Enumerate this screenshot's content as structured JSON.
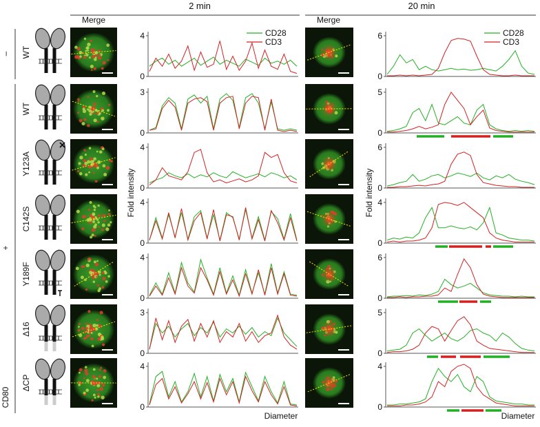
{
  "header": {
    "early": "2 min",
    "late": "20 min",
    "merge_early": "Merge",
    "merge_late": "Merge"
  },
  "groups": {
    "minus": "–",
    "plus": "+",
    "cd80": "CD80"
  },
  "axis": {
    "y_early": "Fold intensity",
    "y_late": "Fold intensity",
    "x_early": "Diameter",
    "x_late": "Diameter"
  },
  "rows": [
    {
      "label": "WT"
    },
    {
      "label": "WT"
    },
    {
      "label": "Y123A"
    },
    {
      "label": "C142S"
    },
    {
      "label": "Y189F"
    },
    {
      "label": "Δ16"
    },
    {
      "label": "ΔCP"
    }
  ],
  "chart_data": [
    {
      "type": "line",
      "ylim": [
        0,
        4.4
      ],
      "yticks": [
        0,
        4
      ],
      "series": [
        {
          "name": "CD28",
          "color": "#22b022",
          "values": [
            1,
            1.5,
            1.8,
            1.2,
            1.6,
            1,
            1.4,
            1.8,
            1.1,
            1.5,
            1.9,
            1.2,
            1.6,
            1.3,
            1,
            1.7,
            1.4,
            1.1,
            1.8,
            1.3,
            1.5,
            1.2,
            1.6,
            1
          ]
        },
        {
          "name": "CD3",
          "color": "#d42020",
          "values": [
            0.5,
            1.8,
            1,
            2.2,
            0.8,
            1.5,
            3,
            0.6,
            2.4,
            0.9,
            1.2,
            3.5,
            0.7,
            2,
            0.6,
            1.5,
            3.3,
            0.8,
            2.6,
            1,
            0.7,
            2.2,
            0.5,
            0.3
          ]
        }
      ]
    },
    {
      "type": "line",
      "ylim": [
        0,
        6.6
      ],
      "yticks": [
        0,
        6
      ],
      "series": [
        {
          "name": "CD28",
          "color": "#22b022",
          "values": [
            0.3,
            1.5,
            3.2,
            2,
            2.5,
            1,
            1.5,
            1,
            0.8,
            1,
            1.2,
            1,
            1.1,
            0.9,
            1,
            1.2,
            1,
            0.8,
            1.5,
            2.5,
            3.8,
            1.5,
            0.5,
            0.3
          ]
        },
        {
          "name": "CD3",
          "color": "#d42020",
          "values": [
            0.1,
            0.1,
            0.2,
            0.1,
            0.2,
            0.1,
            0.2,
            0.3,
            1.2,
            3.5,
            5.3,
            5.6,
            5.5,
            5.2,
            3,
            1,
            0.3,
            0.2,
            0.1,
            0.1,
            0.2,
            0.1,
            0.1,
            0.1
          ]
        }
      ]
    },
    {
      "type": "line",
      "ylim": [
        0,
        3.3
      ],
      "yticks": [
        0,
        3
      ],
      "series": [
        {
          "color": "#22b022",
          "values": [
            0.2,
            0.4,
            2,
            2.6,
            2.2,
            0.3,
            2.5,
            2.8,
            2.2,
            2.7,
            0.3,
            2.5,
            2.9,
            2.4,
            0.4,
            2.6,
            2.9,
            2.2,
            0.3,
            2.3,
            0.3,
            0.2,
            0.3,
            0.2
          ]
        },
        {
          "color": "#d42020",
          "values": [
            0.2,
            0.3,
            1.8,
            2.4,
            1.9,
            0.2,
            2.2,
            2.5,
            2.6,
            2.3,
            0.2,
            2.2,
            2.6,
            2.7,
            0.3,
            2.2,
            2.7,
            2.6,
            0.2,
            2.5,
            0.2,
            0.1,
            0.2,
            0.1
          ]
        }
      ]
    },
    {
      "type": "line",
      "ylim": [
        0,
        5.5
      ],
      "yticks": [
        0,
        5
      ],
      "series": [
        {
          "color": "#22b022",
          "values": [
            0.2,
            0.3,
            0.5,
            0.8,
            2.5,
            3,
            1.5,
            3.5,
            1.2,
            1,
            1.5,
            2,
            1.2,
            1,
            2.8,
            3.5,
            1,
            0.5,
            0.3,
            0.2,
            0.3,
            0.2,
            0.3,
            0.2
          ]
        },
        {
          "color": "#d42020",
          "values": [
            0.1,
            0.1,
            0.2,
            0.3,
            0.5,
            0.8,
            0.5,
            0.7,
            1,
            3.5,
            5,
            4,
            3,
            1,
            2,
            2.8,
            0.6,
            0.3,
            0.2,
            0.1,
            0.1,
            0.1,
            0.1,
            0.1
          ]
        }
      ]
    },
    {
      "type": "line",
      "ylim": [
        0,
        4.4
      ],
      "yticks": [
        0,
        4
      ],
      "series": [
        {
          "color": "#22b022",
          "values": [
            0.5,
            0.8,
            1,
            1.5,
            1.2,
            1,
            1.4,
            1,
            1.3,
            1.1,
            1.5,
            1.2,
            1,
            1.6,
            1.3,
            1,
            1.2,
            1.4,
            1.1,
            1.5,
            1.3,
            1,
            1.2,
            0.8
          ]
        },
        {
          "color": "#d42020",
          "values": [
            0.3,
            0.8,
            2,
            1.2,
            1,
            0.8,
            1.6,
            3.5,
            3.8,
            1.5,
            0.6,
            0.8,
            0.5,
            0.7,
            0.9,
            0.6,
            0.8,
            1.2,
            3.5,
            3,
            3.3,
            1.5,
            0.7,
            0.5
          ]
        }
      ]
    },
    {
      "type": "line",
      "ylim": [
        0,
        6.6
      ],
      "yticks": [
        0,
        6
      ],
      "series": [
        {
          "color": "#22b022",
          "values": [
            0.3,
            0.5,
            0.8,
            1,
            2,
            1,
            1.3,
            1.8,
            2,
            1.5,
            1.8,
            2.2,
            2,
            1.7,
            2.2,
            1.5,
            1.2,
            1.8,
            1.5,
            2,
            1.3,
            1,
            0.8,
            0.5
          ]
        },
        {
          "color": "#d42020",
          "values": [
            0.1,
            0.1,
            0.2,
            0.2,
            0.3,
            0.4,
            0.3,
            0.5,
            0.6,
            1,
            3.5,
            5,
            5.3,
            4.8,
            2,
            0.8,
            0.6,
            0.4,
            0.3,
            0.2,
            0.2,
            0.1,
            0.1,
            0.1
          ]
        }
      ]
    },
    {
      "type": "line",
      "ylim": [
        0,
        4.4
      ],
      "yticks": [
        0,
        4
      ],
      "series": [
        {
          "color": "#22b022",
          "values": [
            0.3,
            2.5,
            0.5,
            2.8,
            0.6,
            3,
            0.4,
            2.6,
            3.2,
            0.5,
            2.8,
            0.3,
            3,
            2.5,
            0.4,
            3.3,
            0.5,
            2.6,
            0.3,
            3.1,
            2.4,
            0.4,
            2.9,
            0.3
          ]
        },
        {
          "color": "#d42020",
          "values": [
            0.3,
            2.2,
            0.4,
            3,
            0.5,
            3.4,
            0.3,
            2.2,
            3,
            0.4,
            3.3,
            0.2,
            2.8,
            2.6,
            0.3,
            3.5,
            0.4,
            2.3,
            0.2,
            3.2,
            2,
            0.3,
            2.5,
            0.2
          ]
        }
      ]
    },
    {
      "type": "line",
      "ylim": [
        0,
        4.4
      ],
      "yticks": [
        0,
        4
      ],
      "series": [
        {
          "color": "#22b022",
          "values": [
            0.3,
            0.5,
            0.4,
            0.6,
            0.5,
            1,
            2.5,
            3.5,
            1.5,
            1.5,
            1.7,
            1.5,
            1.4,
            1.6,
            1.3,
            2,
            3.5,
            1,
            0.8,
            0.5,
            0.4,
            0.3,
            0.3,
            0.2
          ]
        },
        {
          "color": "#d42020",
          "values": [
            0.1,
            0.2,
            0.1,
            0.2,
            0.2,
            0.3,
            0.5,
            1.5,
            3.8,
            4,
            3.9,
            3.7,
            4,
            3.5,
            3,
            2.5,
            1,
            0.5,
            0.3,
            0.2,
            0.1,
            0.1,
            0.1,
            0.1
          ]
        }
      ]
    },
    {
      "type": "line",
      "ylim": [
        0,
        4.4
      ],
      "yticks": [
        0,
        4
      ],
      "series": [
        {
          "color": "#22b022",
          "values": [
            0.3,
            1.5,
            0.4,
            2.5,
            0.5,
            3.5,
            1.5,
            0.6,
            3.8,
            2,
            0.4,
            3,
            0.5,
            2.2,
            0.3,
            2.8,
            0.5,
            2.5,
            0.4,
            3.4,
            0.5,
            2.6,
            0.4,
            0.3
          ]
        },
        {
          "color": "#d42020",
          "values": [
            0.2,
            1.2,
            0.3,
            2,
            0.4,
            3,
            1.2,
            0.5,
            3,
            1.8,
            0.3,
            2.6,
            0.4,
            1.8,
            0.2,
            2.4,
            0.4,
            2.8,
            0.3,
            3,
            0.4,
            2.4,
            0.3,
            0.2
          ]
        }
      ]
    },
    {
      "type": "line",
      "ylim": [
        0,
        6.6
      ],
      "yticks": [
        0,
        6
      ],
      "series": [
        {
          "color": "#22b022",
          "values": [
            0.2,
            0.3,
            0.3,
            0.4,
            0.3,
            0.5,
            0.4,
            0.6,
            1,
            2.8,
            2,
            1.5,
            1.8,
            2.2,
            1.5,
            0.8,
            0.5,
            0.4,
            0.3,
            0.3,
            0.2,
            0.3,
            0.2,
            0.2
          ]
        },
        {
          "color": "#d42020",
          "values": [
            0.1,
            0.1,
            0.2,
            0.1,
            0.2,
            0.2,
            0.3,
            0.3,
            0.5,
            1.5,
            1,
            3.5,
            5.8,
            4.5,
            2,
            0.6,
            0.3,
            0.2,
            0.1,
            0.1,
            0.1,
            0.1,
            0.1,
            0.1
          ]
        }
      ]
    },
    {
      "type": "line",
      "ylim": [
        0,
        3.3
      ],
      "yticks": [
        0,
        3
      ],
      "series": [
        {
          "color": "#22b022",
          "values": [
            0.3,
            2.2,
            1.5,
            2,
            1.2,
            1.8,
            2.2,
            1.3,
            1.9,
            1.5,
            2.3,
            1.2,
            1.8,
            1.5,
            2,
            1.4,
            1.9,
            1.2,
            1.6,
            1.3,
            2.6,
            1.5,
            1,
            0.5
          ]
        },
        {
          "color": "#d42020",
          "values": [
            0.3,
            2.6,
            1,
            2.4,
            0.8,
            2,
            2.5,
            0.9,
            2.2,
            1.2,
            2.4,
            0.8,
            1.6,
            1.2,
            2.2,
            0.9,
            1.6,
            0.8,
            1.3,
            1.5,
            2.8,
            1.2,
            0.6,
            0.3
          ]
        }
      ]
    },
    {
      "type": "line",
      "ylim": [
        0,
        5.5
      ],
      "yticks": [
        0,
        5
      ],
      "series": [
        {
          "color": "#22b022",
          "values": [
            0.3,
            0.4,
            0.5,
            1,
            2.5,
            3,
            2.2,
            1.5,
            2,
            2.5,
            1.8,
            1.5,
            2,
            2.8,
            3,
            2.5,
            2.2,
            1.5,
            2.5,
            2,
            1.2,
            0.6,
            0.4,
            0.3
          ]
        },
        {
          "color": "#d42020",
          "values": [
            0.1,
            0.2,
            0.2,
            0.3,
            0.5,
            1,
            2.5,
            3.3,
            3,
            1.5,
            2.8,
            4,
            4.5,
            3.5,
            1.5,
            1,
            0.6,
            0.5,
            0.4,
            0.3,
            0.2,
            0.1,
            0.1,
            0.1
          ]
        }
      ]
    },
    {
      "type": "line",
      "ylim": [
        0,
        4.4
      ],
      "yticks": [
        0,
        4
      ],
      "series": [
        {
          "color": "#22b022",
          "values": [
            0.3,
            3,
            3.5,
            1,
            2.5,
            0.5,
            1.5,
            3.3,
            1,
            3,
            0.6,
            3.2,
            1.5,
            2.8,
            0.5,
            3.4,
            2,
            0.6,
            3,
            1.5,
            0.4,
            2.5,
            0.3,
            0.2
          ]
        },
        {
          "color": "#d42020",
          "values": [
            0.2,
            2.2,
            2.8,
            0.8,
            2,
            0.4,
            1.3,
            2.5,
            0.8,
            2.4,
            0.5,
            2.8,
            1.2,
            2.5,
            0.4,
            3,
            1.6,
            0.5,
            2.5,
            1.2,
            0.3,
            2,
            0.2,
            0.1
          ]
        }
      ]
    },
    {
      "type": "line",
      "ylim": [
        0,
        4.4
      ],
      "yticks": [
        0,
        4
      ],
      "series": [
        {
          "color": "#22b022",
          "values": [
            0.2,
            0.2,
            0.3,
            0.3,
            0.4,
            0.5,
            0.8,
            2.5,
            3.8,
            3,
            2.5,
            3.2,
            2,
            1.5,
            3,
            2.5,
            1,
            0.6,
            0.5,
            0.4,
            0.3,
            0.3,
            0.2,
            0.2
          ]
        },
        {
          "color": "#d42020",
          "values": [
            0.1,
            0.1,
            0.1,
            0.2,
            0.2,
            0.3,
            0.5,
            1,
            2.5,
            2,
            3.5,
            4,
            4.2,
            3.8,
            2,
            1.2,
            0.8,
            0.4,
            0.3,
            0.2,
            0.1,
            0.1,
            0.1,
            0.1
          ]
        }
      ]
    }
  ]
}
